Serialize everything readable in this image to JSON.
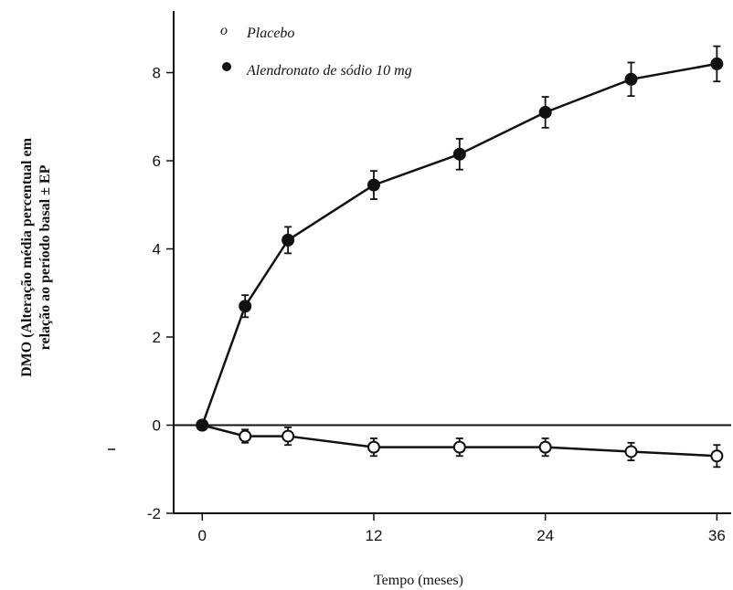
{
  "chart_data": {
    "type": "line",
    "xlabel": "Tempo (meses)",
    "ylabel_line1": "DMO (Alteração média percentual em",
    "ylabel_line2": "relação ao período basal ± EP",
    "x_ticks": [
      0,
      12,
      24,
      36
    ],
    "y_ticks": [
      -2,
      0,
      2,
      4,
      6,
      8
    ],
    "xlim": [
      -2,
      37
    ],
    "ylim": [
      -2,
      9.4
    ],
    "grid": false,
    "legend": "top-left",
    "legend_marker_placebo": "o",
    "series": [
      {
        "name": "Placebo",
        "marker": "open-circle",
        "x": [
          0,
          3,
          6,
          12,
          18,
          24,
          30,
          36
        ],
        "y": [
          0,
          -0.25,
          -0.25,
          -0.5,
          -0.5,
          -0.5,
          -0.6,
          -0.7
        ],
        "err": [
          0,
          0.15,
          0.2,
          0.2,
          0.2,
          0.2,
          0.2,
          0.25
        ]
      },
      {
        "name": "Alendronato de sódio 10 mg",
        "marker": "filled-circle",
        "x": [
          0,
          3,
          6,
          12,
          18,
          24,
          30,
          36
        ],
        "y": [
          0,
          2.7,
          4.2,
          5.45,
          6.15,
          7.1,
          7.85,
          8.2
        ],
        "err": [
          0,
          0.25,
          0.3,
          0.32,
          0.35,
          0.35,
          0.38,
          0.4
        ]
      }
    ]
  }
}
